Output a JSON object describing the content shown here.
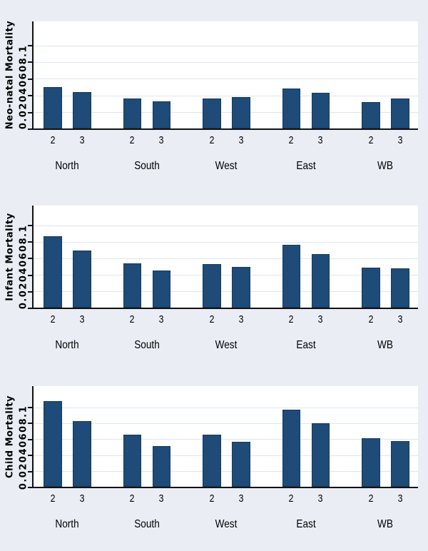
{
  "colors": {
    "page_background": "#eaedf4",
    "plot_background": "#ffffff",
    "gridline": "#dde6ef",
    "bar_fill": "#1e4b77",
    "bar_border": "#143a5e",
    "axis": "#111111",
    "text": "#000000"
  },
  "chart_data": {
    "type": "bar",
    "layout_note": "three vertically stacked panels, shared category structure, gridlines on, no legend",
    "categories": [
      "North",
      "South",
      "West",
      "East",
      "WB"
    ],
    "bar_group_labels": [
      "2",
      "3"
    ],
    "y_axis": {
      "ticks": [
        0,
        0.02,
        0.04,
        0.06,
        0.08,
        0.1
      ],
      "tick_labels": [
        "0",
        ".02",
        ".04",
        ".06",
        ".08",
        ".1"
      ],
      "display_string": "0.02040608.1",
      "ylim": [
        0,
        0.115
      ],
      "grid": true
    },
    "panels": [
      {
        "ylabel": "Neo-natal Mortality",
        "axis_display": "0.02040608.1",
        "series": [
          {
            "name": "2",
            "values": [
              0.05,
              0.036,
              0.036,
              0.048,
              0.032
            ]
          },
          {
            "name": "3",
            "values": [
              0.044,
              0.033,
              0.038,
              0.043,
              0.036
            ]
          }
        ]
      },
      {
        "ylabel": "Infant Mortality",
        "axis_display": "0.02040608.1",
        "series": [
          {
            "name": "2",
            "values": [
              0.087,
              0.054,
              0.053,
              0.076,
              0.049
            ]
          },
          {
            "name": "3",
            "values": [
              0.069,
              0.045,
              0.05,
              0.065,
              0.048
            ]
          }
        ]
      },
      {
        "ylabel": "Child Mortality",
        "axis_display": "0.02040608.1",
        "series": [
          {
            "name": "2",
            "values": [
              0.108,
              0.066,
              0.066,
              0.097,
              0.061
            ]
          },
          {
            "name": "3",
            "values": [
              0.083,
              0.051,
              0.057,
              0.08,
              0.058
            ]
          }
        ]
      }
    ]
  }
}
